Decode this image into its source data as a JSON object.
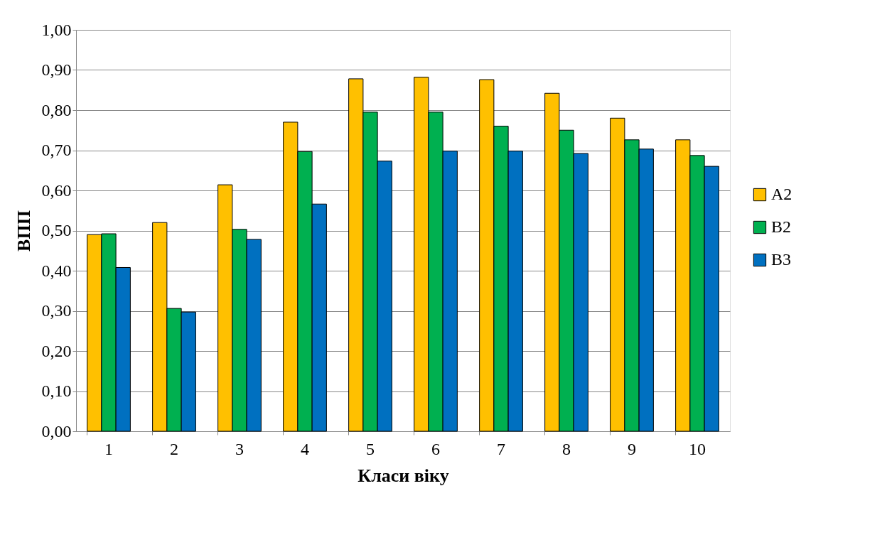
{
  "chart_data": {
    "type": "bar",
    "xlabel": "Класи віку",
    "ylabel": "ВПП",
    "categories": [
      "1",
      "2",
      "3",
      "4",
      "5",
      "6",
      "7",
      "8",
      "9",
      "10"
    ],
    "series": [
      {
        "name": "A2",
        "color": "#ffc000",
        "values": [
          0.49,
          0.52,
          0.614,
          0.77,
          0.878,
          0.882,
          0.876,
          0.842,
          0.78,
          0.726
        ]
      },
      {
        "name": "B2",
        "color": "#00b050",
        "values": [
          0.492,
          0.306,
          0.503,
          0.697,
          0.795,
          0.795,
          0.76,
          0.75,
          0.726,
          0.687
        ]
      },
      {
        "name": "B3",
        "color": "#0070c0",
        "values": [
          0.408,
          0.297,
          0.478,
          0.566,
          0.673,
          0.698,
          0.698,
          0.692,
          0.703,
          0.66
        ]
      }
    ],
    "ylim": [
      0,
      1
    ],
    "yticks": [
      {
        "value": 0,
        "label": "0,00"
      },
      {
        "value": 0.1,
        "label": "0,10"
      },
      {
        "value": 0.2,
        "label": "0,20"
      },
      {
        "value": 0.3,
        "label": "0,30"
      },
      {
        "value": 0.4,
        "label": "0,40"
      },
      {
        "value": 0.5,
        "label": "0,50"
      },
      {
        "value": 0.6,
        "label": "0,60"
      },
      {
        "value": 0.7,
        "label": "0,70"
      },
      {
        "value": 0.8,
        "label": "0,80"
      },
      {
        "value": 0.9,
        "label": "0,90"
      },
      {
        "value": 1.0,
        "label": "1,00"
      }
    ],
    "grid": "y",
    "legend": "right"
  }
}
